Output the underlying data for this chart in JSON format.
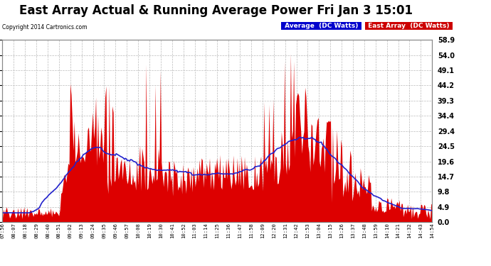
{
  "title": "East Array Actual & Running Average Power Fri Jan 3 15:01",
  "copyright": "Copyright 2014 Cartronics.com",
  "ylabel_right_ticks": [
    0.0,
    4.9,
    9.8,
    14.7,
    19.6,
    24.5,
    29.4,
    34.4,
    39.3,
    44.2,
    49.1,
    54.0,
    58.9
  ],
  "ylim": [
    0,
    58.9
  ],
  "x_labels": [
    "07:56",
    "08:07",
    "08:18",
    "08:29",
    "08:40",
    "08:51",
    "09:02",
    "09:13",
    "09:24",
    "09:35",
    "09:46",
    "09:57",
    "10:08",
    "10:19",
    "10:30",
    "10:41",
    "10:52",
    "11:03",
    "11:14",
    "11:25",
    "11:36",
    "11:47",
    "11:58",
    "12:09",
    "12:20",
    "12:31",
    "12:42",
    "12:53",
    "13:04",
    "13:15",
    "13:26",
    "13:37",
    "13:48",
    "13:59",
    "14:10",
    "14:21",
    "14:32",
    "14:43",
    "14:54"
  ],
  "bar_color": "#dd0000",
  "avg_line_color": "#2222cc",
  "background_color": "#ffffff",
  "grid_color": "#bbbbbb",
  "title_fontsize": 12,
  "figsize": [
    6.9,
    3.75
  ],
  "dpi": 100
}
